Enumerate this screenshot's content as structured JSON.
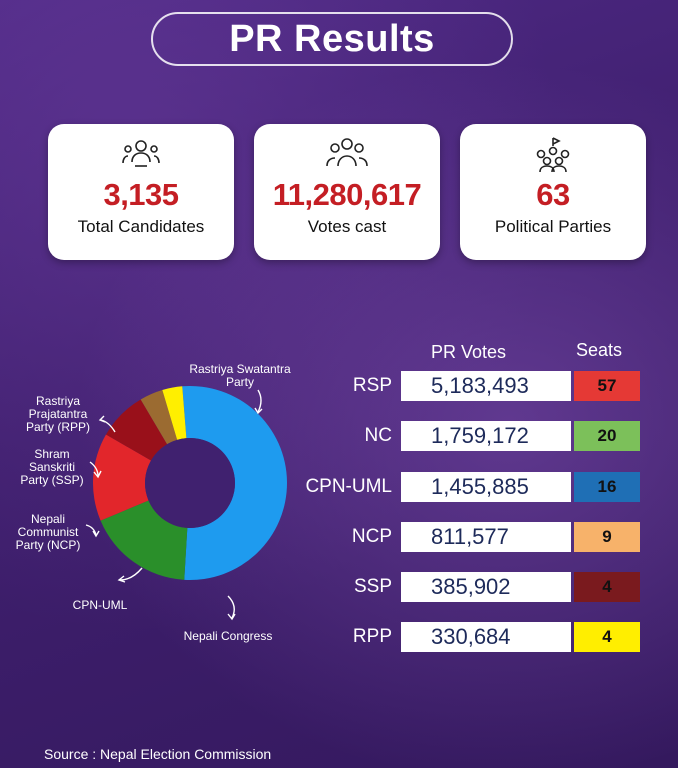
{
  "title": "PR Results",
  "stats": [
    {
      "value": "3,135",
      "label": "Total Candidates",
      "icon": "candidate-icon"
    },
    {
      "value": "11,280,617",
      "label": "Votes cast",
      "icon": "voters-group-icon"
    },
    {
      "value": "63",
      "label": "Political Parties",
      "icon": "party-gathering-icon"
    }
  ],
  "table": {
    "header_votes": "PR Votes",
    "header_seats": "Seats",
    "rows": [
      {
        "party": "RSP",
        "votes": "5,183,493",
        "seats": "57",
        "color": "#e53935"
      },
      {
        "party": "NC",
        "votes": "1,759,172",
        "seats": "20",
        "color": "#7cc05a"
      },
      {
        "party": "CPN-UML",
        "votes": "1,455,885",
        "seats": "16",
        "color": "#1f6fb5"
      },
      {
        "party": "NCP",
        "votes": "811,577",
        "seats": "9",
        "color": "#f7b26a"
      },
      {
        "party": "SSP",
        "votes": "385,902",
        "seats": "4",
        "color": "#7a1a1e"
      },
      {
        "party": "RPP",
        "votes": "330,684",
        "seats": "4",
        "color": "#ffee00"
      }
    ]
  },
  "chart_data": {
    "type": "pie",
    "style": "donut",
    "slices": [
      {
        "label": "Rastriya Swatantra Party",
        "value": 5183493,
        "color": "#1e9bef"
      },
      {
        "label": "Nepali Congress",
        "value": 1759172,
        "color": "#2a8f2a"
      },
      {
        "label": "CPN-UML",
        "value": 1455885,
        "color": "#e2262b"
      },
      {
        "label": "Nepali Communist Party (NCP)",
        "value": 811577,
        "color": "#99101a"
      },
      {
        "label": "Shram Sanskriti Party (SSP)",
        "value": 385902,
        "color": "#9b6b31"
      },
      {
        "label": "Rastriya Prajatantra Party (RPP)",
        "value": 330684,
        "color": "#ffef00"
      }
    ]
  },
  "source": "Source : Nepal Election Commission"
}
